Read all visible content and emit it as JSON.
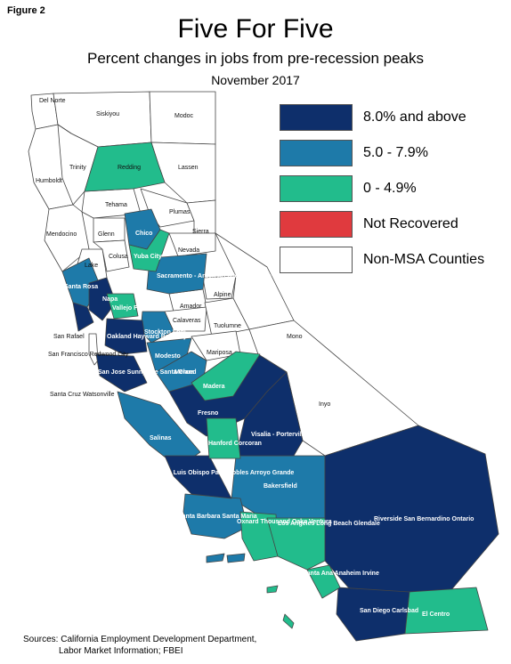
{
  "header": {
    "figure_label": "Figure 2",
    "title": "Five For Five",
    "subtitle": "Percent changes in jobs from pre-recession peaks",
    "date": "November 2017"
  },
  "colors": {
    "dark_blue": "#0e2f6b",
    "mid_blue": "#1e7aa9",
    "green": "#22bc8c",
    "red": "#e03a3e",
    "white": "#ffffff",
    "border": "#444444"
  },
  "legend": [
    {
      "label": "8.0% and above",
      "color": "#0e2f6b"
    },
    {
      "label": "5.0 - 7.9%",
      "color": "#1e7aa9"
    },
    {
      "label": "0 - 4.9%",
      "color": "#22bc8c"
    },
    {
      "label": "Not Recovered",
      "color": "#e03a3e"
    },
    {
      "label": "Non-MSA Counties",
      "color": "#ffffff"
    }
  ],
  "counties": {
    "del_norte": "Del Norte",
    "siskiyou": "Siskiyou",
    "modoc": "Modoc",
    "humboldt": "Humboldt",
    "trinity": "Trinity",
    "redding": "Redding",
    "lassen": "Lassen",
    "tehama": "Tehama",
    "plumas": "Plumas",
    "mendocino": "Mendocino",
    "glenn": "Glenn",
    "chico": "Chico",
    "sierra": "Sierra",
    "nevada": "Nevada",
    "yuba_city": "Yuba City",
    "lake": "Lake",
    "colusa": "Colusa",
    "santa_rosa": "Santa Rosa",
    "sacramento": "Sacramento - Arden Arcade - Roseville",
    "napa": "Napa",
    "alpine": "Alpine",
    "vallejo": "Vallejo Fairfield",
    "amador": "Amador",
    "calaveras": "Calaveras",
    "tuolumne": "Tuolumne",
    "san_rafael": "San Rafael",
    "oakland": "Oakland Hayward Berkeley",
    "stockton": "Stockton Lodi",
    "mono": "Mono",
    "san_francisco": "San Francisco Redwood City",
    "modesto": "Modesto",
    "mariposa": "Mariposa",
    "san_jose": "San Jose Sunnyvale Santa Clara",
    "merced": "Merced",
    "santa_cruz": "Santa Cruz Watsonville",
    "madera": "Madera",
    "inyo": "Inyo",
    "fresno": "Fresno",
    "salinas": "Salinas",
    "visalia": "Visalia - Porterville",
    "hanford": "Hanford Corcoran",
    "slo": "San Luis Obispo Paso Robles Arroyo Grande",
    "bakersfield": "Bakersfield",
    "riverside": "Riverside San Bernardino Ontario",
    "santa_barbara": "Santa Barbara Santa Maria",
    "oxnard": "Oxnard Thousand Oaks Ventura",
    "los_angeles": "Los Angeles Long Beach Glendale",
    "santa_ana": "Santa Ana Anaheim Irvine",
    "san_diego": "San Diego Carlsbad",
    "el_centro": "El Centro"
  },
  "sources": {
    "line1": "Sources: California Employment Development Department,",
    "line2": "Labor Market Information; FBEI"
  }
}
